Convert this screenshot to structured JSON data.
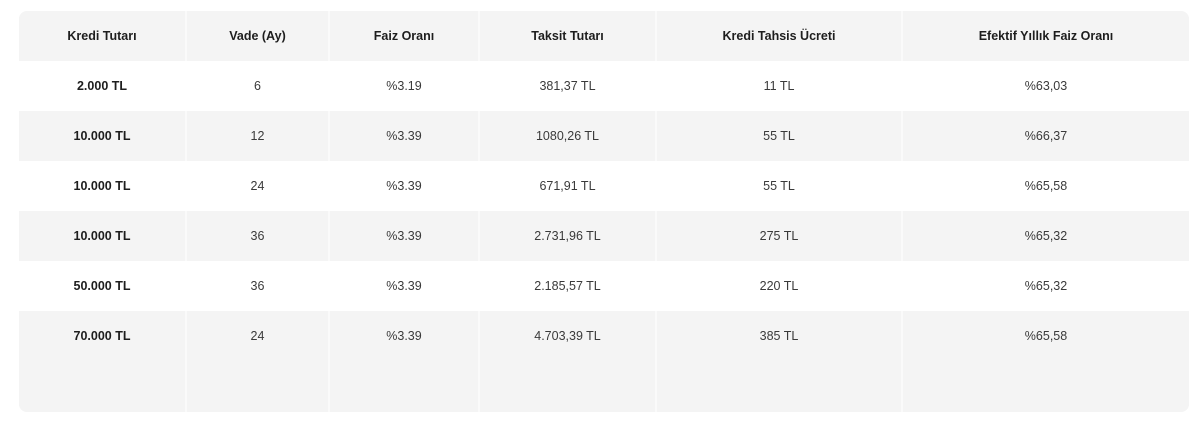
{
  "table": {
    "headers": [
      "Kredi Tutarı",
      "Vade (Ay)",
      "Faiz Oranı",
      "Taksit Tutarı",
      "Kredi Tahsis Ücreti",
      "Efektif Yıllık Faiz Oranı"
    ],
    "rows": [
      [
        "2.000 TL",
        "6",
        "%3.19",
        "381,37 TL",
        "11 TL",
        "%63,03"
      ],
      [
        "10.000 TL",
        "12",
        "%3.39",
        "1080,26 TL",
        "55 TL",
        "%66,37"
      ],
      [
        "10.000 TL",
        "24",
        "%3.39",
        "671,91 TL",
        "55 TL",
        "%65,58"
      ],
      [
        "10.000 TL",
        "36",
        "%3.39",
        "2.731,96 TL",
        "275 TL",
        "%65,32"
      ],
      [
        "50.000 TL",
        "36",
        "%3.39",
        "2.185,57 TL",
        "220 TL",
        "%65,32"
      ],
      [
        "70.000 TL",
        "24",
        "%3.39",
        "4.703,39 TL",
        "385 TL",
        "%65,58"
      ]
    ]
  },
  "colors": {
    "header_bg": "#f4f4f4",
    "row_odd_bg": "#ffffff",
    "row_even_bg": "#f4f4f4",
    "text": "#222222"
  }
}
